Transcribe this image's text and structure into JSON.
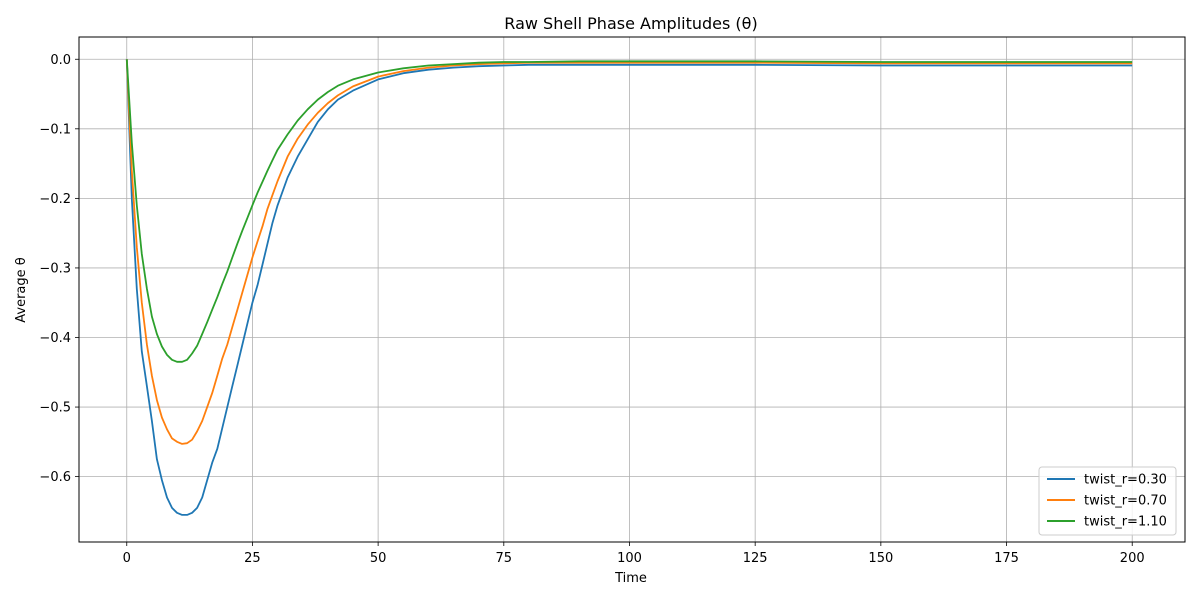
{
  "chart_data": {
    "type": "line",
    "title": "Raw Shell Phase Amplitudes (θ)",
    "xlabel": "Time",
    "ylabel": "Average θ",
    "xlim": [
      -9.5,
      210.5
    ],
    "ylim": [
      -0.694,
      0.032
    ],
    "x_ticks": [
      0,
      25,
      50,
      75,
      100,
      125,
      150,
      175,
      200
    ],
    "y_ticks": [
      0.0,
      -0.1,
      -0.2,
      -0.3,
      -0.4,
      -0.5,
      -0.6
    ],
    "x_tick_labels": [
      "0",
      "25",
      "50",
      "75",
      "100",
      "125",
      "150",
      "175",
      "200"
    ],
    "y_tick_labels": [
      "0.0",
      "−0.1",
      "−0.2",
      "−0.3",
      "−0.4",
      "−0.5",
      "−0.6"
    ],
    "grid": true,
    "legend_position": "bottom-right",
    "series": [
      {
        "name": "twist_r=0.30",
        "color": "#1f77b4",
        "x": [
          0,
          1,
          2,
          3,
          4,
          5,
          6,
          7,
          8,
          9,
          10,
          11,
          12,
          13,
          14,
          15,
          16,
          17,
          18,
          19,
          20,
          21,
          22,
          23,
          24,
          25,
          26,
          27,
          28,
          29,
          30,
          32,
          34,
          36,
          38,
          40,
          42,
          45,
          50,
          55,
          60,
          65,
          70,
          75,
          80,
          90,
          100,
          110,
          125,
          150,
          175,
          200
        ],
        "y": [
          0.0,
          -0.2,
          -0.33,
          -0.42,
          -0.47,
          -0.52,
          -0.575,
          -0.605,
          -0.63,
          -0.645,
          -0.652,
          -0.655,
          -0.655,
          -0.652,
          -0.645,
          -0.63,
          -0.605,
          -0.58,
          -0.56,
          -0.53,
          -0.5,
          -0.47,
          -0.44,
          -0.41,
          -0.38,
          -0.35,
          -0.325,
          -0.295,
          -0.265,
          -0.235,
          -0.21,
          -0.17,
          -0.14,
          -0.115,
          -0.09,
          -0.072,
          -0.058,
          -0.045,
          -0.029,
          -0.02,
          -0.015,
          -0.012,
          -0.01,
          -0.009,
          -0.008,
          -0.008,
          -0.008,
          -0.008,
          -0.008,
          -0.009,
          -0.009,
          -0.009
        ]
      },
      {
        "name": "twist_r=0.70",
        "color": "#ff7f0e",
        "x": [
          0,
          1,
          2,
          3,
          4,
          5,
          6,
          7,
          8,
          9,
          10,
          11,
          12,
          13,
          14,
          15,
          16,
          17,
          18,
          19,
          20,
          21,
          22,
          23,
          24,
          25,
          26,
          27,
          28,
          29,
          30,
          32,
          34,
          36,
          38,
          40,
          42,
          45,
          50,
          55,
          60,
          65,
          70,
          75,
          80,
          90,
          100,
          110,
          125,
          150,
          175,
          200
        ],
        "y": [
          0.0,
          -0.16,
          -0.27,
          -0.35,
          -0.41,
          -0.455,
          -0.49,
          -0.515,
          -0.532,
          -0.545,
          -0.55,
          -0.553,
          -0.552,
          -0.547,
          -0.535,
          -0.52,
          -0.5,
          -0.48,
          -0.455,
          -0.43,
          -0.41,
          -0.385,
          -0.36,
          -0.335,
          -0.31,
          -0.285,
          -0.262,
          -0.24,
          -0.215,
          -0.195,
          -0.175,
          -0.14,
          -0.114,
          -0.094,
          -0.077,
          -0.063,
          -0.052,
          -0.039,
          -0.025,
          -0.017,
          -0.012,
          -0.009,
          -0.007,
          -0.006,
          -0.005,
          -0.005,
          -0.005,
          -0.005,
          -0.005,
          -0.006,
          -0.006,
          -0.006
        ]
      },
      {
        "name": "twist_r=1.10",
        "color": "#2ca02c",
        "x": [
          0,
          1,
          2,
          3,
          4,
          5,
          6,
          7,
          8,
          9,
          10,
          11,
          12,
          13,
          14,
          15,
          16,
          17,
          18,
          19,
          20,
          21,
          22,
          23,
          24,
          25,
          26,
          27,
          28,
          29,
          30,
          32,
          34,
          36,
          38,
          40,
          42,
          45,
          50,
          55,
          60,
          65,
          70,
          75,
          80,
          90,
          100,
          110,
          125,
          150,
          175,
          200
        ],
        "y": [
          0.0,
          -0.12,
          -0.21,
          -0.28,
          -0.33,
          -0.37,
          -0.395,
          -0.413,
          -0.425,
          -0.432,
          -0.435,
          -0.435,
          -0.432,
          -0.423,
          -0.412,
          -0.395,
          -0.378,
          -0.36,
          -0.342,
          -0.323,
          -0.305,
          -0.285,
          -0.265,
          -0.246,
          -0.228,
          -0.21,
          -0.192,
          -0.176,
          -0.16,
          -0.145,
          -0.13,
          -0.108,
          -0.088,
          -0.072,
          -0.058,
          -0.047,
          -0.038,
          -0.029,
          -0.019,
          -0.013,
          -0.009,
          -0.007,
          -0.005,
          -0.004,
          -0.004,
          -0.003,
          -0.003,
          -0.003,
          -0.003,
          -0.004,
          -0.004,
          -0.004
        ]
      }
    ]
  }
}
